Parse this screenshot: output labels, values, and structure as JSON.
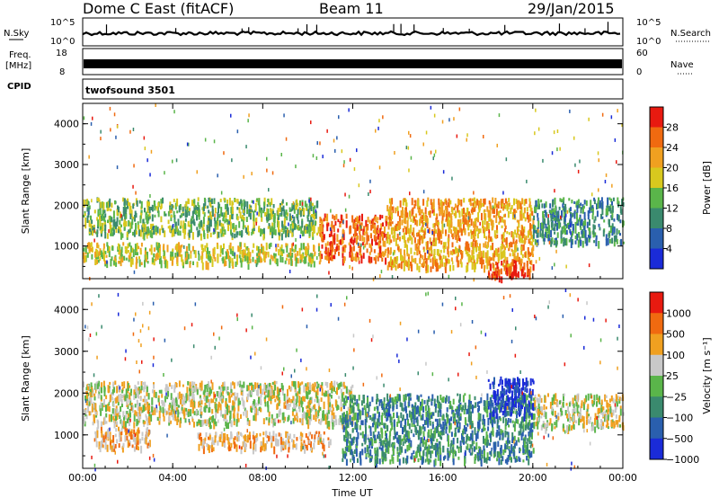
{
  "header": {
    "station": "Dome C East (fitACF)",
    "beam": "Beam 11",
    "date": "29/Jan/2015"
  },
  "top_panels": {
    "nsky_label": "N.Sky",
    "nsky_ticks": [
      "10^5",
      "10^0"
    ],
    "nsearch_label": "N.Search",
    "nsearch_ticks": [
      "10^5",
      "10^0"
    ],
    "freq_label": "Freq.",
    "freq_unit": "[MHz]",
    "freq_ticks": [
      "18",
      "8"
    ],
    "nave_label": "Nave",
    "nave_ticks": [
      "60",
      "0"
    ],
    "cpid_label": "CPID",
    "cpid_value": "twofsound 3501"
  },
  "chart_data": [
    {
      "type": "heatmap",
      "name": "power",
      "xlabel": "Time UT",
      "ylabel": "Slant Range [km]",
      "xlim": [
        0,
        24
      ],
      "ylim": [
        200,
        4500
      ],
      "x_ticks": [
        "00:00",
        "04:00",
        "08:00",
        "12:00",
        "16:00",
        "20:00",
        "00:00"
      ],
      "y_ticks": [
        1000,
        2000,
        3000,
        4000
      ],
      "colorbar": {
        "label": "Power [dB]",
        "ticks": [
          "28",
          "24",
          "20",
          "16",
          "12",
          "8",
          "4"
        ],
        "colors": [
          "#1a2bd8",
          "#2a5fae",
          "#3a8a6e",
          "#5ab54a",
          "#d8c81e",
          "#f0a020",
          "#f06a10",
          "#e81a10"
        ]
      },
      "bands": [
        {
          "t0": 0.0,
          "t1": 10.5,
          "r0": 1300,
          "r1": 2200,
          "level": 3
        },
        {
          "t0": 0.0,
          "t1": 10.5,
          "r0": 600,
          "r1": 1100,
          "level": 4
        },
        {
          "t0": 10.5,
          "t1": 13.5,
          "r0": 700,
          "r1": 1800,
          "level": 6
        },
        {
          "t0": 13.5,
          "t1": 20.0,
          "r0": 500,
          "r1": 2200,
          "level": 5
        },
        {
          "t0": 18.0,
          "t1": 20.0,
          "r0": 250,
          "r1": 700,
          "level": 7
        },
        {
          "t0": 20.0,
          "t1": 24.0,
          "r0": 1100,
          "r1": 2200,
          "level": 2
        }
      ]
    },
    {
      "type": "heatmap",
      "name": "velocity",
      "xlabel": "Time UT",
      "ylabel": "Slant Range [km]",
      "xlim": [
        0,
        24
      ],
      "ylim": [
        200,
        4500
      ],
      "x_ticks": [
        "00:00",
        "04:00",
        "08:00",
        "12:00",
        "16:00",
        "20:00",
        "00:00"
      ],
      "y_ticks": [
        1000,
        2000,
        3000,
        4000
      ],
      "colorbar": {
        "label": "Velocity [m s⁻¹]",
        "ticks": [
          "1000",
          "500",
          "100",
          "25",
          "−25",
          "−100",
          "−500",
          "−1000"
        ],
        "colors": [
          "#1a2bd8",
          "#2a5fae",
          "#3a8a6e",
          "#5ab54a",
          "#c8c8c8",
          "#f0a020",
          "#f06a10",
          "#e81a10"
        ]
      },
      "bands": [
        {
          "t0": 0.0,
          "t1": 12.0,
          "r0": 1300,
          "r1": 2300,
          "level": 4
        },
        {
          "t0": 0.5,
          "t1": 3.0,
          "r0": 700,
          "r1": 1200,
          "level": 5
        },
        {
          "t0": 5.0,
          "t1": 11.0,
          "r0": 700,
          "r1": 1100,
          "level": 5
        },
        {
          "t0": 11.5,
          "t1": 20.0,
          "r0": 400,
          "r1": 2000,
          "level": 2
        },
        {
          "t0": 18.0,
          "t1": 20.0,
          "r0": 1500,
          "r1": 2400,
          "level": 0
        },
        {
          "t0": 20.0,
          "t1": 24.0,
          "r0": 1200,
          "r1": 2000,
          "level": 4
        }
      ]
    }
  ]
}
